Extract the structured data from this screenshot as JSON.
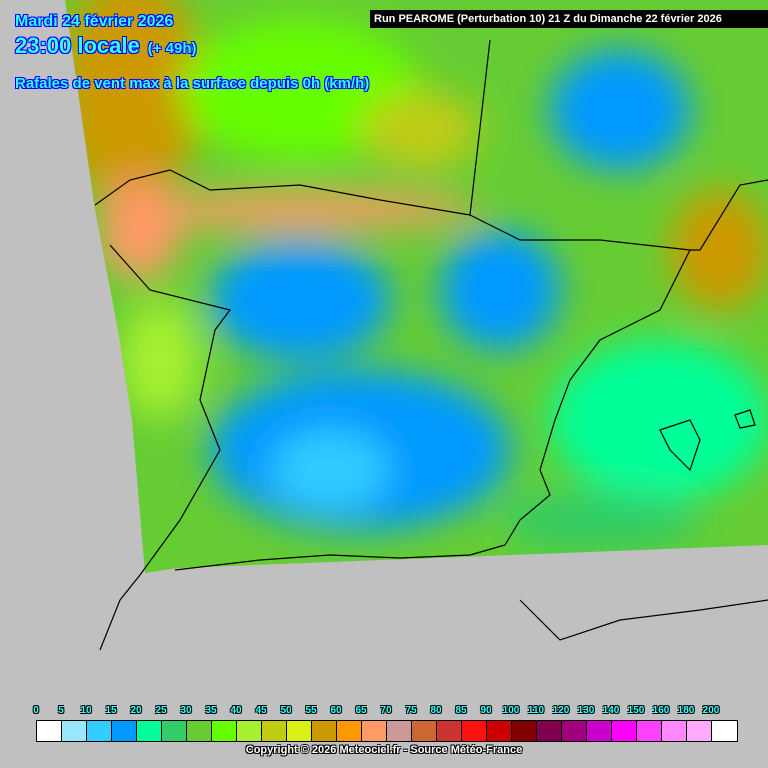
{
  "header": {
    "date": "Mardi 24 février 2026",
    "time": "23:00 locale",
    "offset": "(+ 49h)",
    "parameter": "Rafales de vent max à la surface depuis 0h (km/h)",
    "run": "Run PEAROME (Perturbation 10) 21 Z du Dimanche 22 février 2026"
  },
  "legend": {
    "labels": [
      "0",
      "5",
      "10",
      "15",
      "20",
      "25",
      "30",
      "35",
      "40",
      "45",
      "50",
      "55",
      "60",
      "65",
      "70",
      "75",
      "80",
      "85",
      "90",
      "100",
      "110",
      "120",
      "130",
      "140",
      "150",
      "160",
      "180",
      "200"
    ],
    "colors": [
      "#ffffff",
      "#99e6ff",
      "#33ccff",
      "#0099ff",
      "#00ff99",
      "#33cc66",
      "#66cc33",
      "#66ff00",
      "#a6f030",
      "#bfcc12",
      "#d9ef16",
      "#cc9900",
      "#ff9900",
      "#ff9966",
      "#cc9999",
      "#cc6633",
      "#cc3333",
      "#ff1111",
      "#cc0000",
      "#800000",
      "#800050",
      "#a0007a",
      "#cc00cc",
      "#ff00ff",
      "#ff40ff",
      "#ff88ff",
      "#ffaaff",
      "#ffffff"
    ]
  },
  "copyright": "Copyright © 2026 Meteociel.fr - Source Météo-France",
  "map": {
    "background": "#c0c0c0"
  }
}
